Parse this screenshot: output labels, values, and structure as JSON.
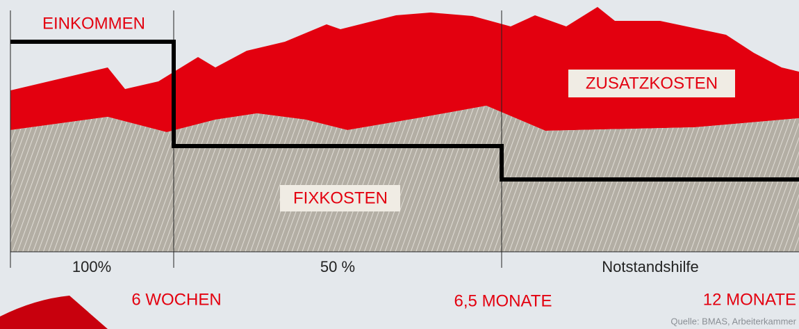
{
  "labels": {
    "income": "EINKOMMEN",
    "extra_costs": "ZUSATZKOSTEN",
    "fixed_costs": "FIXKOSTEN"
  },
  "phases": [
    "100%",
    "50 %",
    "Notstandshilfe"
  ],
  "milestones": [
    "6 WOCHEN",
    "6,5 MONATE",
    "12 MONATE"
  ],
  "source": "Quelle: BMAS, Arbeiterkammer"
}
